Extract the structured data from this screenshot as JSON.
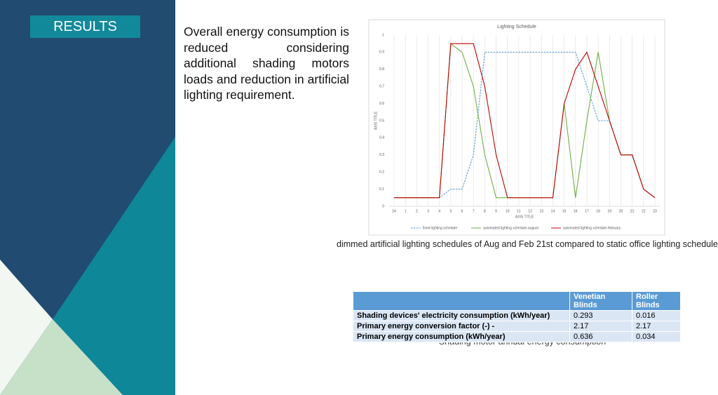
{
  "title": "RESULTS",
  "paragraph": "Overall energy consumption is reduced considering additional shading motors loads and reduction in artificial lighting requirement.",
  "chart_data": {
    "type": "line",
    "title": "Lighting Schedule",
    "x_label": "AXIS TITLE",
    "y_label": "AXIS TITLE",
    "categories": [
      "24",
      "1",
      "2",
      "3",
      "4",
      "5",
      "6",
      "7",
      "8",
      "9",
      "10",
      "11",
      "12",
      "13",
      "14",
      "15",
      "16",
      "17",
      "18",
      "19",
      "20",
      "21",
      "22",
      "23"
    ],
    "series": [
      {
        "name": "fixed lighting schedule",
        "color": "#5b9bd5",
        "dashed": true,
        "values": [
          0.05,
          0.05,
          0.05,
          0.05,
          0.05,
          0.1,
          0.1,
          0.3,
          0.9,
          0.9,
          0.9,
          0.9,
          0.9,
          0.9,
          0.9,
          0.9,
          0.9,
          0.7,
          0.5,
          0.5,
          0.3,
          0.3,
          0.1,
          0.05
        ]
      },
      {
        "name": "automated lighting schedule-august",
        "color": "#70ad47",
        "dashed": false,
        "values": [
          0.05,
          0.05,
          0.05,
          0.05,
          0.05,
          0.95,
          0.9,
          0.7,
          0.3,
          0.05,
          0.05,
          0.05,
          0.05,
          0.05,
          0.05,
          0.6,
          0.05,
          0.5,
          0.9,
          0.5,
          0.3,
          0.3,
          0.1,
          0.05
        ]
      },
      {
        "name": "automated lighting schedule-february",
        "color": "#c00000",
        "dashed": false,
        "values": [
          0.05,
          0.05,
          0.05,
          0.05,
          0.05,
          0.95,
          0.95,
          0.95,
          0.7,
          0.3,
          0.05,
          0.05,
          0.05,
          0.05,
          0.05,
          0.6,
          0.8,
          0.9,
          0.7,
          0.5,
          0.3,
          0.3,
          0.1,
          0.05
        ]
      }
    ],
    "ylim": [
      0,
      1
    ],
    "yticks": [
      0,
      0.1,
      0.2,
      0.3,
      0.4,
      0.5,
      0.6,
      0.7,
      0.8,
      0.9,
      1
    ],
    "grid": true
  },
  "chart_caption": "dimmed artificial lighting schedules of Aug and Feb 21st compared to static office lighting schedule",
  "table": {
    "columns": [
      "Venetian Blinds",
      "Roller Blinds"
    ],
    "rows": [
      [
        "Shading devices' electricity consumption (kWh/year)",
        0.293,
        0.016
      ],
      [
        "Primary energy conversion factor (-) -",
        2.17,
        2.17
      ],
      [
        "Primary energy consumption (kWh/year)",
        0.636,
        0.034
      ]
    ]
  },
  "table_caption": "Shading motor annual energy consumption"
}
